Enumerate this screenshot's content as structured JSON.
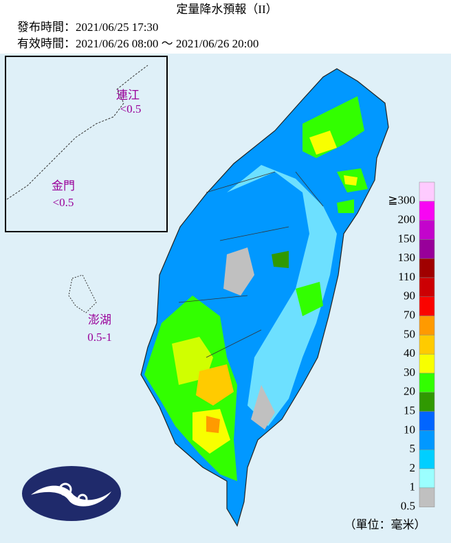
{
  "header": {
    "title": "定量降水預報（II）",
    "issued": "發布時間：2021/06/25 17:30",
    "valid": "有效時間：2021/06/26 08:00 ～ 2021/06/26 20:00"
  },
  "islands": [
    {
      "name": "連江",
      "amount": "<0.5"
    },
    {
      "name": "金門",
      "amount": "<0.5"
    },
    {
      "name": "澎湖",
      "amount": "0.5-1"
    }
  ],
  "legend": {
    "items": [
      {
        "label": "≧300",
        "color": "#fecbff"
      },
      {
        "label": "200",
        "color": "#f805f3"
      },
      {
        "label": "150",
        "color": "#c304cc"
      },
      {
        "label": "130",
        "color": "#98009a"
      },
      {
        "label": "110",
        "color": "#a00000"
      },
      {
        "label": "90",
        "color": "#cc0003"
      },
      {
        "label": "70",
        "color": "#fa0300"
      },
      {
        "label": "50",
        "color": "#ff9a00"
      },
      {
        "label": "40",
        "color": "#ffcb00"
      },
      {
        "label": "30",
        "color": "#f8ff00"
      },
      {
        "label": "20",
        "color": "#32ff00"
      },
      {
        "label": "15",
        "color": "#309901"
      },
      {
        "label": "10",
        "color": "#0165ff"
      },
      {
        "label": "5",
        "color": "#0198ff"
      },
      {
        "label": "2",
        "color": "#00cfff"
      },
      {
        "label": "1",
        "color": "#9bffff"
      },
      {
        "label": "0.5",
        "color": "#c0c0c0"
      }
    ],
    "unit": "（單位：毫米）"
  }
}
